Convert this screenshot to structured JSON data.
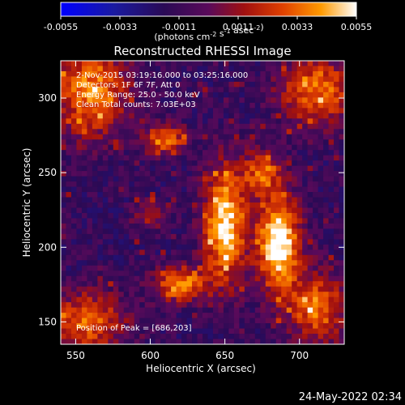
{
  "chart_data": {
    "type": "heatmap",
    "title": "Reconstructed RHESSI Image",
    "xlabel": "Heliocentric X (arcsec)",
    "ylabel": "Heliocentric Y (arcsec)",
    "xlim": [
      540,
      730
    ],
    "ylim": [
      135,
      325
    ],
    "x_ticks": [
      550,
      600,
      650,
      700
    ],
    "y_ticks": [
      150,
      200,
      250,
      300
    ],
    "colorbar": {
      "tick_labels": [
        "-0.0055",
        "-0.0033",
        "-0.0011",
        "0.0011",
        "0.0033",
        "0.0055"
      ],
      "range": [
        -0.0055,
        0.0055
      ],
      "unit_label": "(photons cm^-2 s^-1 asec^-2)"
    },
    "info_lines": [
      " 2-Nov-2015 03:19:16.000 to 03:25:16.000",
      "Detectors: 1F 6F 7F, Att 0",
      "Energy Range: 25.0 - 50.0 keV",
      "Clean      Total counts: 7.03E+03"
    ],
    "peak_label": "Position of Peak = [686,203]",
    "peak_position": [
      686,
      203
    ],
    "grid": false,
    "sources": [
      {
        "x": 650,
        "y": 215,
        "sx": 10,
        "sy": 28,
        "amp": 1.1
      },
      {
        "x": 686,
        "y": 203,
        "sx": 10,
        "sy": 22,
        "amp": 1.25
      },
      {
        "x": 675,
        "y": 250,
        "sx": 9,
        "sy": 10,
        "amp": 0.7
      },
      {
        "x": 620,
        "y": 175,
        "sx": 12,
        "sy": 8,
        "amp": 0.9
      },
      {
        "x": 610,
        "y": 272,
        "sx": 10,
        "sy": 7,
        "amp": 0.8
      },
      {
        "x": 560,
        "y": 305,
        "sx": 18,
        "sy": 22,
        "amp": 0.85
      },
      {
        "x": 712,
        "y": 305,
        "sx": 18,
        "sy": 16,
        "amp": 0.8
      },
      {
        "x": 558,
        "y": 150,
        "sx": 18,
        "sy": 14,
        "amp": 0.75
      },
      {
        "x": 712,
        "y": 160,
        "sx": 14,
        "sy": 16,
        "amp": 0.8
      },
      {
        "x": 600,
        "y": 222,
        "sx": 7,
        "sy": 6,
        "amp": 0.55
      }
    ]
  },
  "footer": {
    "date": "24-May-2022 02:34"
  },
  "colors": {
    "background": "#000000",
    "foreground": "#ffffff"
  }
}
